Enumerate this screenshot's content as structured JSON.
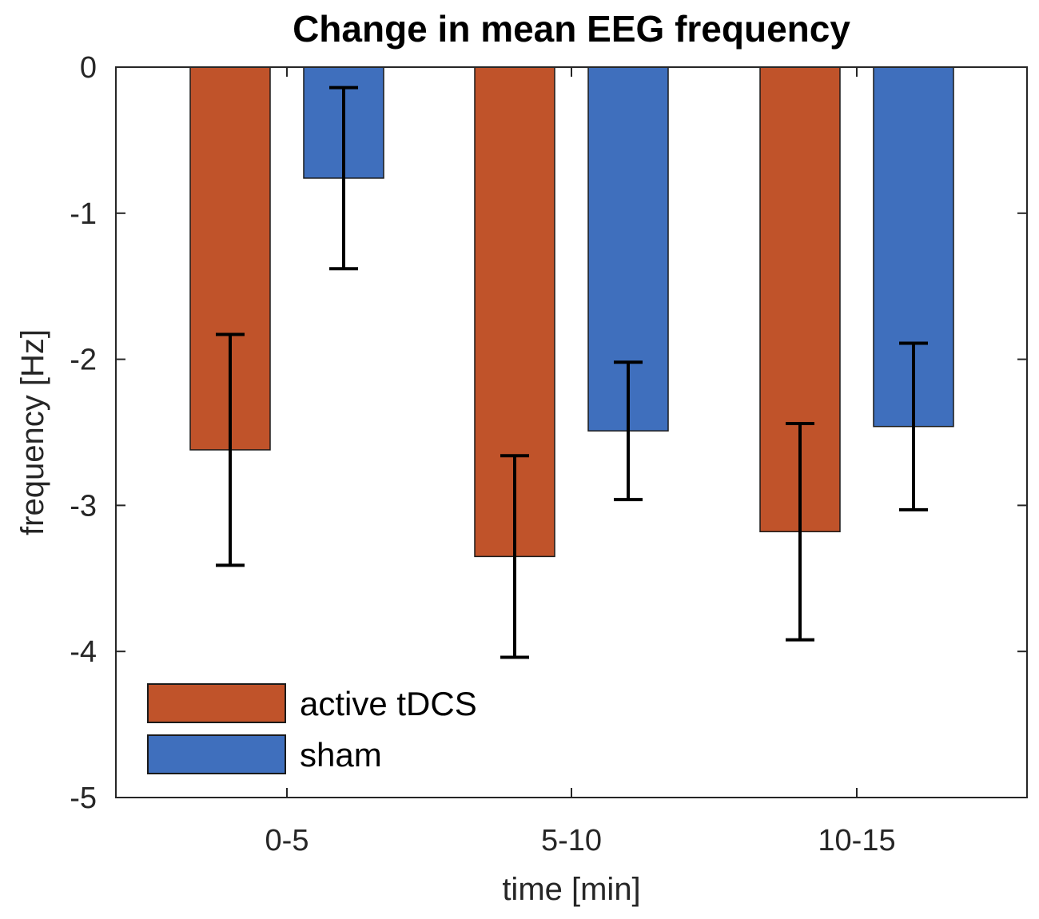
{
  "chart_data": {
    "type": "bar",
    "title": "Change in mean EEG frequency",
    "xlabel": "time [min]",
    "ylabel": "frequency [Hz]",
    "categories": [
      "0-5",
      "5-10",
      "10-15"
    ],
    "ylim": [
      -5,
      0
    ],
    "yticks": [
      0,
      -1,
      -2,
      -3,
      -4,
      -5
    ],
    "ytick_labels": [
      "0",
      "-1",
      "-2",
      "-3",
      "-4",
      "-5"
    ],
    "series": [
      {
        "name": "active tDCS",
        "color": "#c0532a",
        "values": [
          -2.62,
          -3.35,
          -3.18
        ],
        "error": [
          0.79,
          0.69,
          0.74
        ]
      },
      {
        "name": "sham",
        "color": "#3f6fbd",
        "values": [
          -0.76,
          -2.49,
          -2.46
        ],
        "error": [
          0.62,
          0.47,
          0.57
        ]
      }
    ],
    "legend": {
      "position": "bottom-left",
      "entries": [
        "active tDCS",
        "sham"
      ]
    },
    "grid": false
  }
}
